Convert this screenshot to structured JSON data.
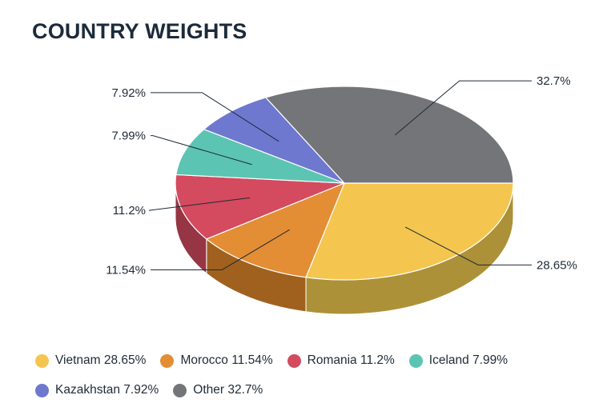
{
  "title": "COUNTRY WEIGHTS",
  "chart_data": {
    "type": "pie",
    "title": "COUNTRY WEIGHTS",
    "style": "3d",
    "legend_position": "bottom",
    "slices": [
      {
        "name": "Vietnam",
        "value": 28.65,
        "label": "28.65%",
        "legend": "Vietnam 28.65%",
        "color": "#f4c650",
        "side_color": "#ad9138"
      },
      {
        "name": "Morocco",
        "value": 11.54,
        "label": "11.54%",
        "legend": "Morocco 11.54%",
        "color": "#e38e35",
        "side_color": "#a0611f"
      },
      {
        "name": "Romania",
        "value": 11.2,
        "label": "11.2%",
        "legend": "Romania 11.2%",
        "color": "#d44a5f",
        "side_color": "#963544"
      },
      {
        "name": "Iceland",
        "value": 7.99,
        "label": "7.99%",
        "legend": "Iceland 7.99%",
        "color": "#5cc4b3",
        "side_color": "#3f8a7e"
      },
      {
        "name": "Kazakhstan",
        "value": 7.92,
        "label": "7.92%",
        "legend": "Kazakhstan 7.92%",
        "color": "#6e78cf",
        "side_color": "#4d5491"
      },
      {
        "name": "Other",
        "value": 32.7,
        "label": "32.7%",
        "legend": "Other 32.7%",
        "color": "#737579",
        "side_color": "#515356"
      }
    ]
  }
}
